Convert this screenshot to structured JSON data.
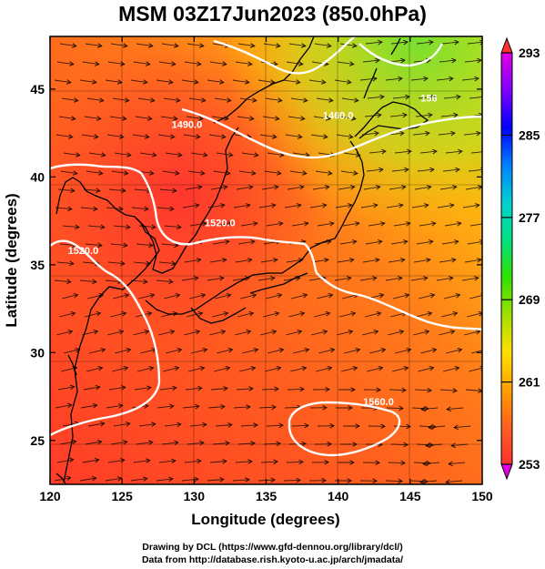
{
  "title": "MSM 03Z17Jun2023 (850.0hPa)",
  "map": {
    "xlabel": "Longitude (degrees)",
    "ylabel": "Latitude  (degrees)",
    "lon_range": [
      120,
      150
    ],
    "lat_range": [
      22.5,
      48
    ],
    "lon_ticks": [
      "120",
      "125",
      "130",
      "135",
      "140",
      "145",
      "150"
    ],
    "lat_ticks": [
      "25",
      "30",
      "35",
      "40",
      "45"
    ],
    "contour_labels": [
      {
        "text": "1490.0",
        "lon": 129.5,
        "lat": 42.8
      },
      {
        "text": "1460.0",
        "lon": 140.0,
        "lat": 43.3
      },
      {
        "text": "1520.0",
        "lon": 122.3,
        "lat": 35.6
      },
      {
        "text": "1520.0",
        "lon": 131.8,
        "lat": 37.2
      },
      {
        "text": "1560.0",
        "lon": 142.8,
        "lat": 27.0
      },
      {
        "text": "156",
        "lon": 146.3,
        "lat": 44.3
      }
    ]
  },
  "colorbar": {
    "labels": [
      "293",
      "285",
      "277",
      "269",
      "261",
      "253"
    ],
    "min": 253,
    "max": 293,
    "colors": [
      "#e000e0",
      "#8000ff",
      "#0000ff",
      "#0080ff",
      "#00d0d0",
      "#00e080",
      "#30e000",
      "#a0e000",
      "#ffe000",
      "#ffa000",
      "#ff6020",
      "#ff3030"
    ]
  },
  "credits": {
    "line1": "Drawing by DCL (https://www.gfd-dennou.org/library/dcl/)",
    "line2": "Data from http://database.rish.kyoto-u.ac.jp/arch/jmadata/"
  }
}
